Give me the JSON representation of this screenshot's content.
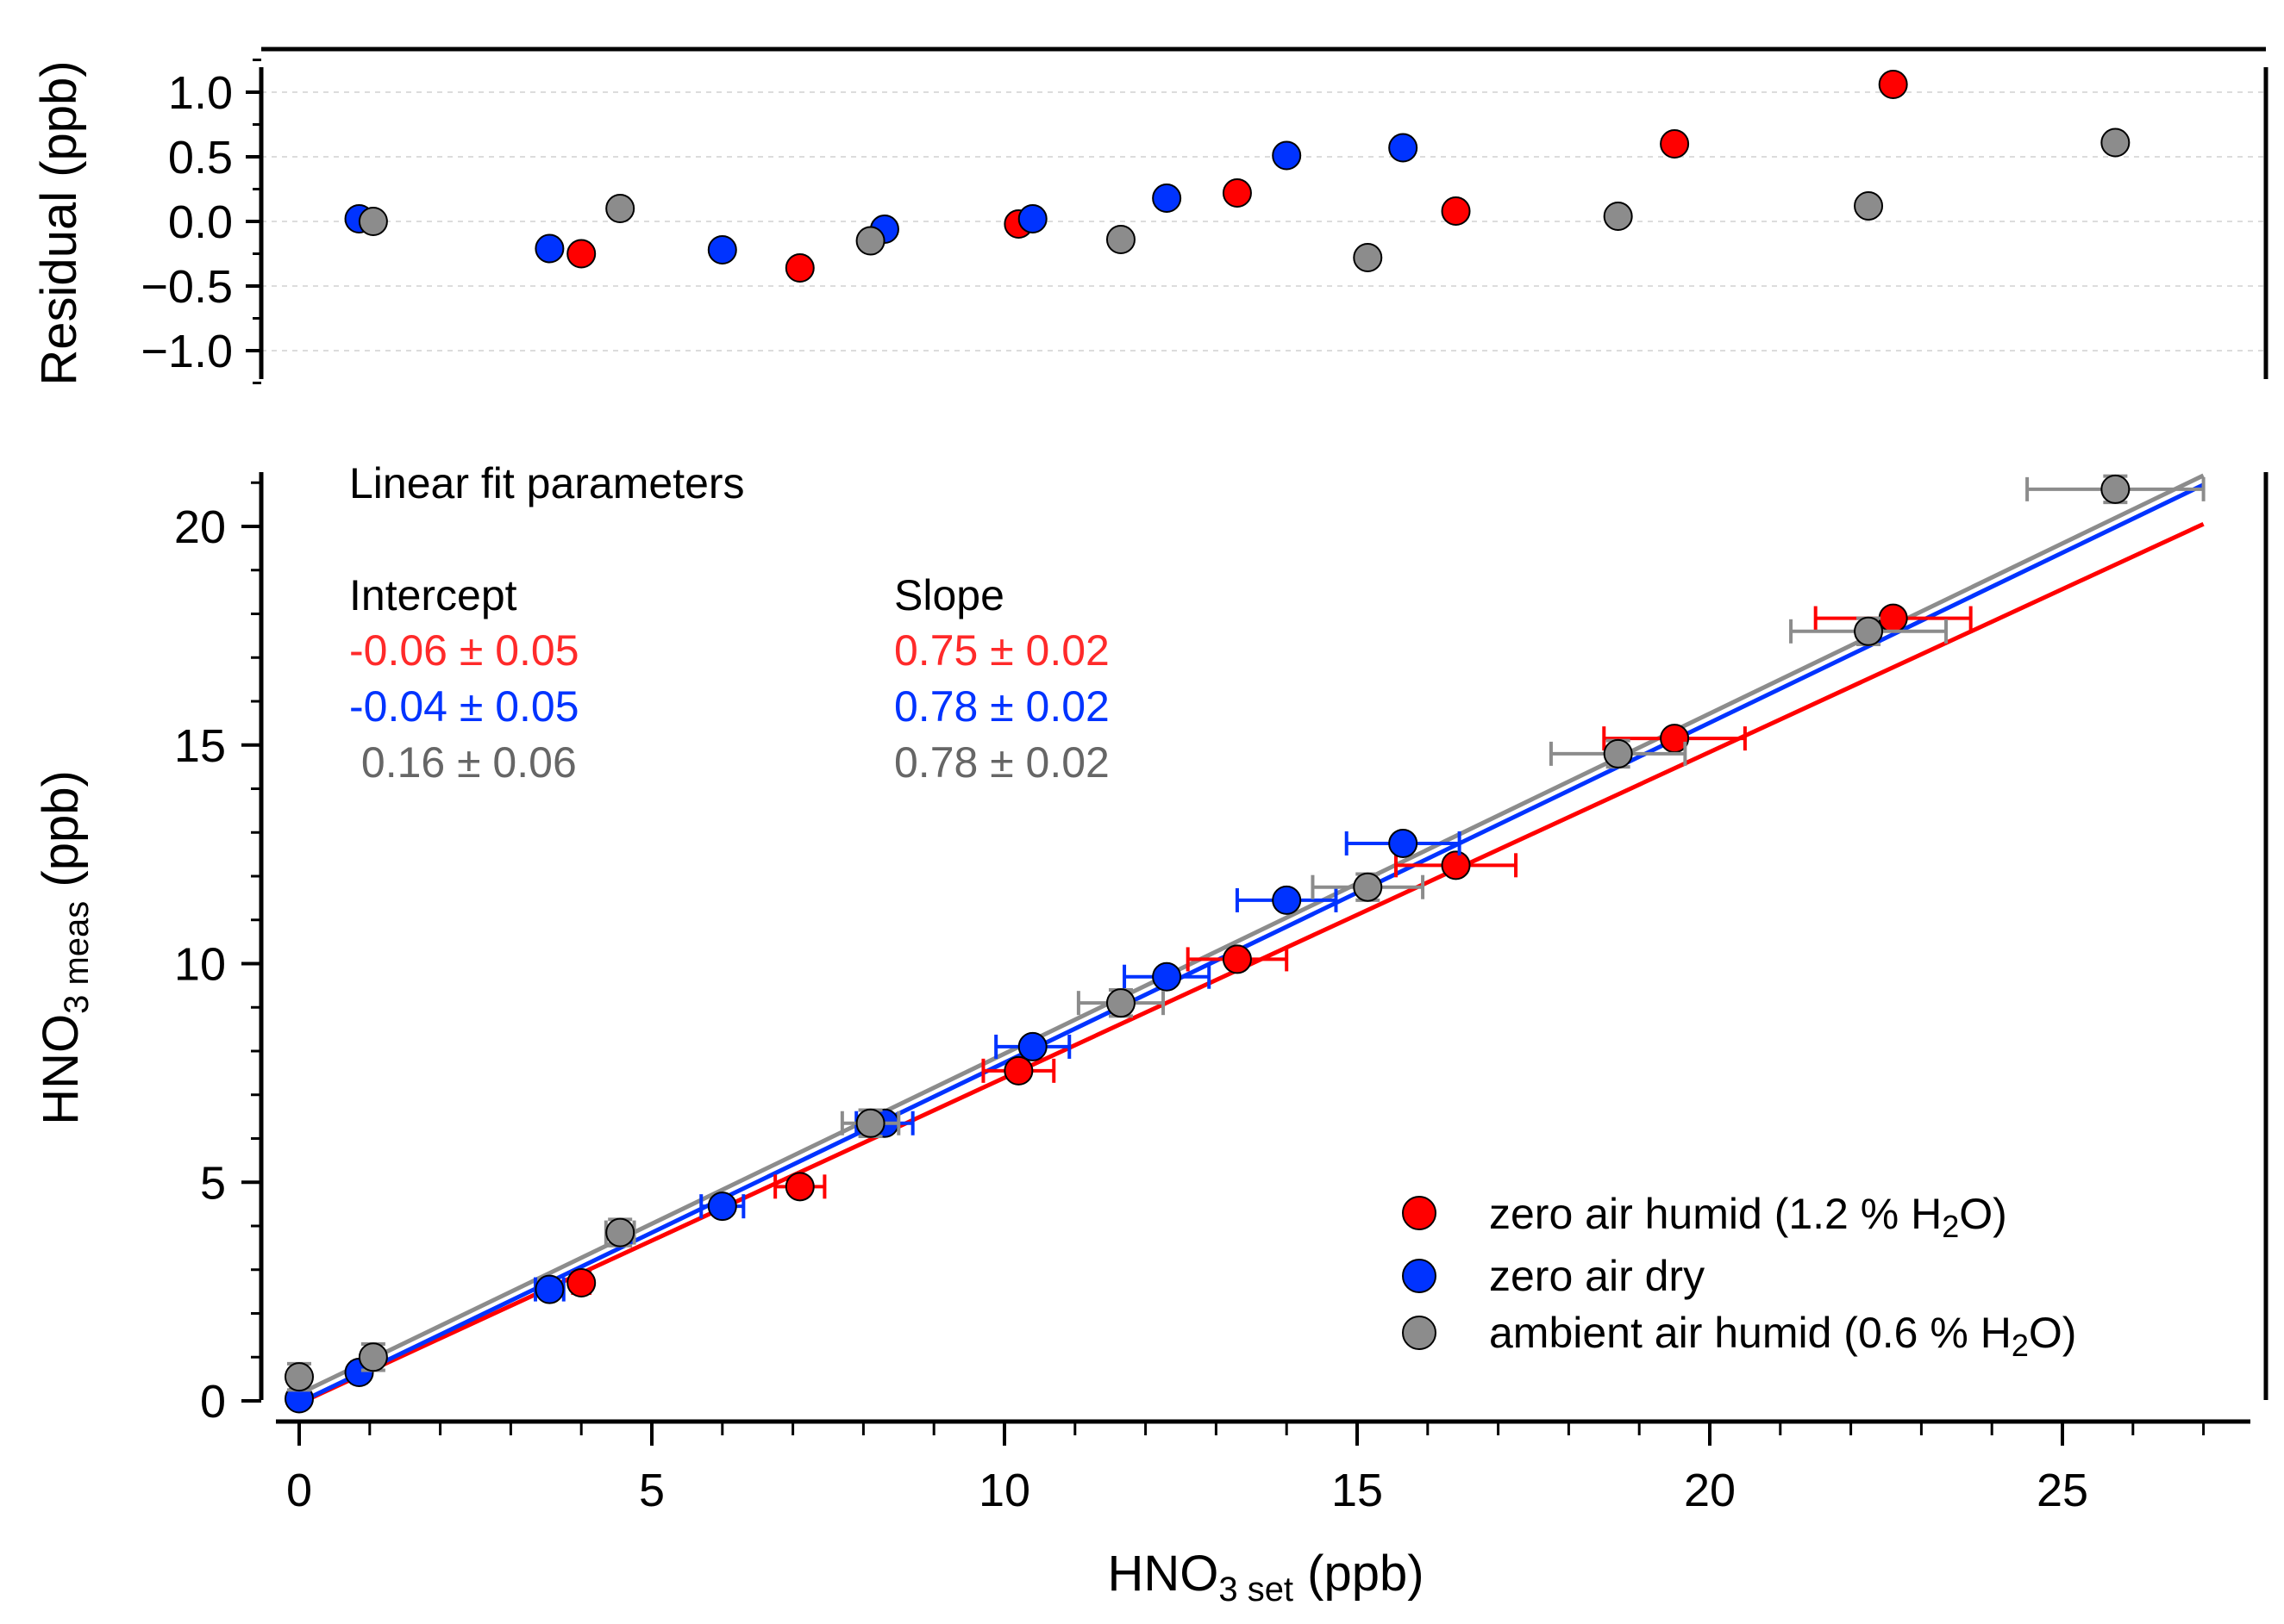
{
  "chart_data": [
    {
      "type": "scatter",
      "panel": "residual",
      "ylabel": "Residual (ppb)",
      "xlim": [
        -0.5,
        28.3
      ],
      "ylim": [
        -1.2,
        1.32
      ],
      "yticks": [
        "1.0",
        "0.5",
        "0.0",
        "−0.5",
        "−1.0"
      ],
      "ytick_values": [
        1.0,
        0.5,
        0.0,
        -0.5,
        -1.0
      ],
      "grid": true,
      "series": [
        {
          "name": "zero air humid",
          "color": "#ff0000",
          "x": [
            4.0,
            7.1,
            10.2,
            13.3,
            16.4,
            19.5,
            22.6
          ],
          "y": [
            -0.25,
            -0.36,
            -0.02,
            0.22,
            0.08,
            0.6,
            1.06
          ]
        },
        {
          "name": "zero air dry",
          "color": "#0033ff",
          "x": [
            0.85,
            3.55,
            6.0,
            8.3,
            10.4,
            12.3,
            14.0,
            15.65
          ],
          "y": [
            0.02,
            -0.21,
            -0.22,
            -0.06,
            0.02,
            0.18,
            0.51,
            0.57
          ]
        },
        {
          "name": "ambient air humid",
          "color": "#8c8c8c",
          "x": [
            1.05,
            4.55,
            8.1,
            11.65,
            15.15,
            18.7,
            22.25,
            25.75
          ],
          "y": [
            0.0,
            0.1,
            -0.15,
            -0.14,
            -0.28,
            0.04,
            0.12,
            0.61
          ]
        }
      ]
    },
    {
      "type": "scatter",
      "panel": "main",
      "ylabel": "HNO₃ meas (ppb)",
      "xlabel": "HNO₃ set (ppb)",
      "xlim": [
        -0.5,
        28.3
      ],
      "ylim": [
        -0.3,
        21.2
      ],
      "xticks": [
        "0",
        "5",
        "10",
        "15",
        "20",
        "25"
      ],
      "xtick_values": [
        0,
        5,
        10,
        15,
        20,
        25
      ],
      "yticks": [
        "0",
        "5",
        "10",
        "15",
        "20"
      ],
      "ytick_values": [
        0,
        5,
        10,
        15,
        20
      ],
      "grid": false,
      "series": [
        {
          "name": "zero air humid",
          "color": "#ff0000",
          "x": [
            4.0,
            7.1,
            10.2,
            13.3,
            16.4,
            19.5,
            22.6
          ],
          "y": [
            2.7,
            4.9,
            7.55,
            10.1,
            12.25,
            15.15,
            17.9
          ],
          "xerr": [
            0.12,
            0.35,
            0.5,
            0.7,
            0.85,
            1.0,
            1.1
          ],
          "fit": {
            "intercept": -0.06,
            "slope": 0.745,
            "x_range": [
              0,
              27
            ]
          }
        },
        {
          "name": "zero air dry",
          "color": "#0033ff",
          "x": [
            0,
            0.85,
            3.55,
            6.0,
            8.3,
            10.4,
            12.3,
            14.0,
            15.65
          ],
          "y": [
            0.05,
            0.65,
            2.55,
            4.45,
            6.35,
            8.1,
            9.7,
            11.45,
            12.75
          ],
          "xerr": [
            0,
            0.1,
            0.2,
            0.3,
            0.4,
            0.52,
            0.6,
            0.7,
            0.8
          ],
          "fit": {
            "intercept": -0.04,
            "slope": 0.7775,
            "x_range": [
              0,
              27
            ]
          }
        },
        {
          "name": "ambient air humid",
          "color": "#8c8c8c",
          "x": [
            0,
            1.05,
            4.55,
            8.1,
            11.65,
            15.15,
            18.7,
            22.25,
            25.75
          ],
          "y": [
            0.55,
            1.0,
            3.85,
            6.35,
            9.1,
            11.75,
            14.8,
            17.6,
            20.85
          ],
          "xerr": [
            0,
            0.1,
            0.2,
            0.4,
            0.6,
            0.78,
            0.95,
            1.1,
            1.25
          ],
          "yerr": [
            0.3,
            0.3,
            0.3,
            0.3,
            0.3,
            0.3,
            0.3,
            0.3,
            0.3
          ],
          "fit": {
            "intercept": 0.16,
            "slope": 0.778,
            "x_range": [
              0,
              27
            ]
          }
        }
      ]
    }
  ],
  "annotation": {
    "title": "Linear fit parameters",
    "intercept_header": "Intercept",
    "slope_header": "Slope",
    "intercepts": [
      "-0.06 ± 0.05",
      "-0.04 ± 0.05",
      " 0.16 ± 0.06"
    ],
    "slopes": [
      "0.75 ± 0.02",
      "0.78 ± 0.02",
      "0.78 ± 0.02"
    ],
    "colors": [
      "#ff2a2a",
      "#0033ff",
      "#666666"
    ]
  },
  "legend": {
    "entries": [
      {
        "prefix": "zero air humid (1.2 % H",
        "sub": "2",
        "suffix": "O)",
        "color": "#ff0000"
      },
      {
        "prefix": "zero air dry",
        "sub": "",
        "suffix": "",
        "color": "#0033ff"
      },
      {
        "prefix": "ambient air humid (0.6 % H",
        "sub": "2",
        "suffix": "O)",
        "color": "#8c8c8c"
      }
    ]
  },
  "labels": {
    "residual_ylabel": "Residual (ppb)",
    "main_ylabel_main": "HNO",
    "main_ylabel_sub": "3 meas",
    "main_ylabel_unit": " (ppb)",
    "xlabel_main": "HNO",
    "xlabel_sub": "3 set",
    "xlabel_unit": " (ppb)"
  }
}
